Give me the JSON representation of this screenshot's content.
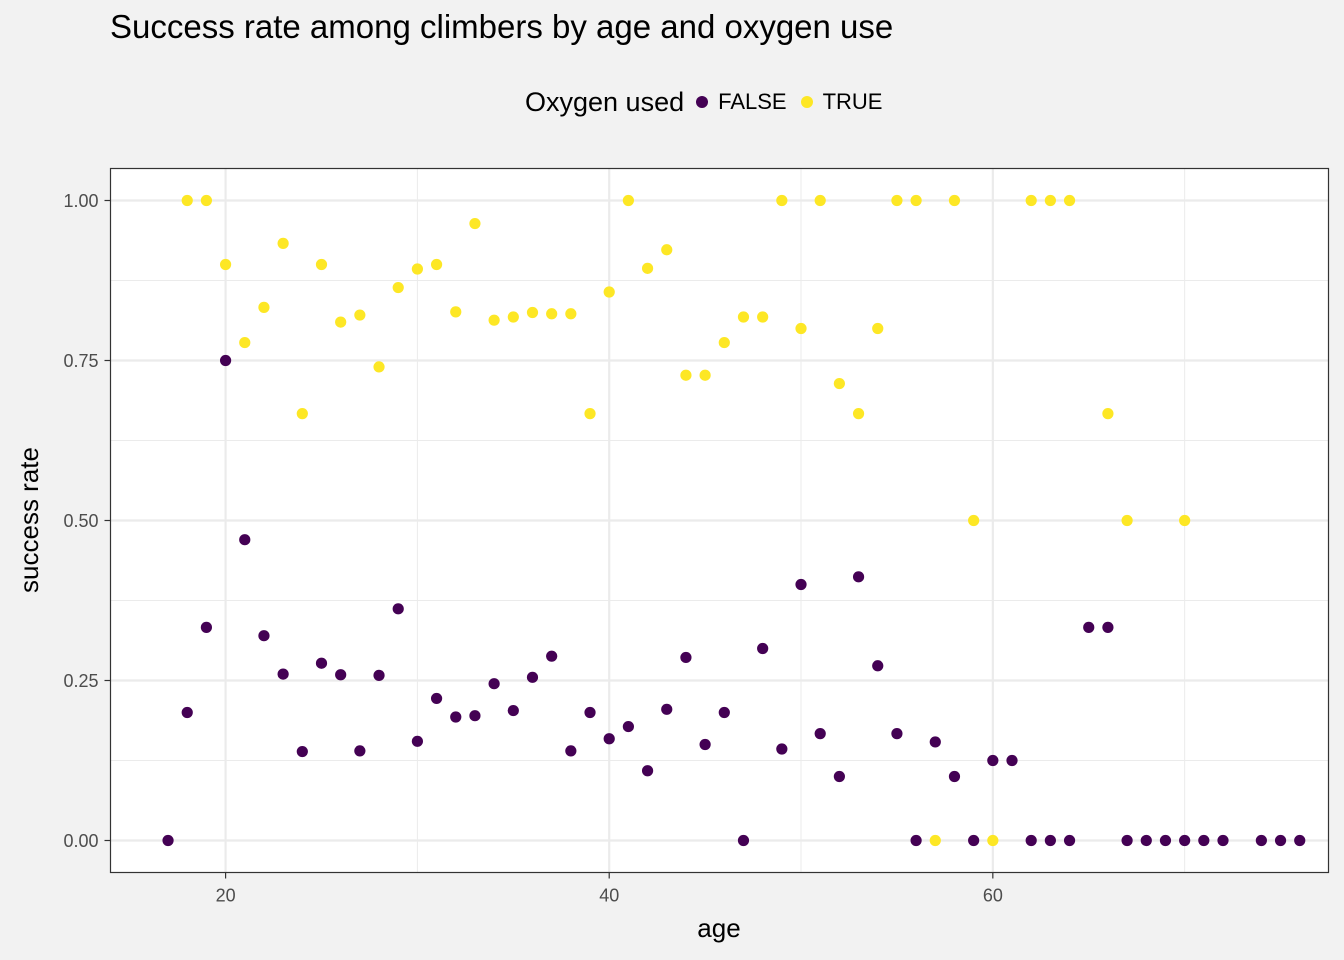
{
  "chart_data": {
    "type": "scatter",
    "title": "Success rate among climbers by age and oxygen use",
    "xlabel": "age",
    "ylabel": "success rate",
    "xlim": [
      14,
      77.5
    ],
    "ylim": [
      -0.05,
      1.05
    ],
    "x_ticks": [
      20,
      40,
      60
    ],
    "x_tick_labels": [
      "20",
      "40",
      "60"
    ],
    "y_ticks": [
      0,
      0.25,
      0.5,
      0.75,
      1
    ],
    "y_tick_labels": [
      "0.00",
      "0.25",
      "0.50",
      "0.75",
      "1.00"
    ],
    "grid": true,
    "legend": {
      "title": "Oxygen used",
      "position": "top",
      "entries": [
        {
          "label": "FALSE",
          "color": "#440154"
        },
        {
          "label": "TRUE",
          "color": "#fde725"
        }
      ]
    },
    "series": [
      {
        "name": "FALSE",
        "color": "#440154",
        "points": [
          [
            17,
            0
          ],
          [
            18,
            0.2
          ],
          [
            19,
            0.333
          ],
          [
            20,
            0.75
          ],
          [
            21,
            0.47
          ],
          [
            22,
            0.32
          ],
          [
            23,
            0.26
          ],
          [
            24,
            0.139
          ],
          [
            25,
            0.277
          ],
          [
            26,
            0.259
          ],
          [
            27,
            0.14
          ],
          [
            28,
            0.258
          ],
          [
            29,
            0.362
          ],
          [
            30,
            0.155
          ],
          [
            31,
            0.222
          ],
          [
            32,
            0.193
          ],
          [
            33,
            0.195
          ],
          [
            34,
            0.245
          ],
          [
            35,
            0.203
          ],
          [
            36,
            0.255
          ],
          [
            37,
            0.288
          ],
          [
            38,
            0.14
          ],
          [
            39,
            0.2
          ],
          [
            40,
            0.159
          ],
          [
            41,
            0.178
          ],
          [
            42,
            0.109
          ],
          [
            43,
            0.205
          ],
          [
            44,
            0.286
          ],
          [
            45,
            0.15
          ],
          [
            46,
            0.2
          ],
          [
            47,
            0
          ],
          [
            48,
            0.3
          ],
          [
            49,
            0.143
          ],
          [
            50,
            0.4
          ],
          [
            51,
            0.167
          ],
          [
            52,
            0.1
          ],
          [
            53,
            0.412
          ],
          [
            54,
            0.273
          ],
          [
            55,
            0.167
          ],
          [
            56,
            0
          ],
          [
            57,
            0.154
          ],
          [
            58,
            0.1
          ],
          [
            59,
            0
          ],
          [
            60,
            0.125
          ],
          [
            61,
            0.125
          ],
          [
            62,
            0
          ],
          [
            63,
            0
          ],
          [
            64,
            0
          ],
          [
            65,
            0.333
          ],
          [
            66,
            0.333
          ],
          [
            67,
            0
          ],
          [
            68,
            0
          ],
          [
            69,
            0
          ],
          [
            70,
            0
          ],
          [
            71,
            0
          ],
          [
            72,
            0
          ],
          [
            74,
            0
          ],
          [
            75,
            0
          ],
          [
            76,
            0
          ]
        ]
      },
      {
        "name": "TRUE",
        "color": "#fde725",
        "points": [
          [
            18,
            1
          ],
          [
            19,
            1
          ],
          [
            20,
            0.9
          ],
          [
            21,
            0.778
          ],
          [
            22,
            0.833
          ],
          [
            23,
            0.933
          ],
          [
            24,
            0.667
          ],
          [
            25,
            0.9
          ],
          [
            26,
            0.81
          ],
          [
            27,
            0.821
          ],
          [
            28,
            0.74
          ],
          [
            29,
            0.864
          ],
          [
            30,
            0.893
          ],
          [
            31,
            0.9
          ],
          [
            32,
            0.826
          ],
          [
            33,
            0.964
          ],
          [
            34,
            0.813
          ],
          [
            35,
            0.818
          ],
          [
            36,
            0.825
          ],
          [
            37,
            0.823
          ],
          [
            38,
            0.823
          ],
          [
            39,
            0.667
          ],
          [
            40,
            0.857
          ],
          [
            41,
            1
          ],
          [
            42,
            0.894
          ],
          [
            43,
            0.923
          ],
          [
            44,
            0.727
          ],
          [
            45,
            0.727
          ],
          [
            46,
            0.778
          ],
          [
            47,
            0.818
          ],
          [
            48,
            0.818
          ],
          [
            49,
            1
          ],
          [
            50,
            0.8
          ],
          [
            51,
            1
          ],
          [
            52,
            0.714
          ],
          [
            53,
            0.667
          ],
          [
            54,
            0.8
          ],
          [
            55,
            1
          ],
          [
            56,
            1
          ],
          [
            57,
            0
          ],
          [
            58,
            1
          ],
          [
            59,
            0.5
          ],
          [
            60,
            0
          ],
          [
            62,
            1
          ],
          [
            63,
            1
          ],
          [
            64,
            1
          ],
          [
            66,
            0.667
          ],
          [
            67,
            0.5
          ],
          [
            70,
            0.5
          ]
        ]
      }
    ]
  }
}
